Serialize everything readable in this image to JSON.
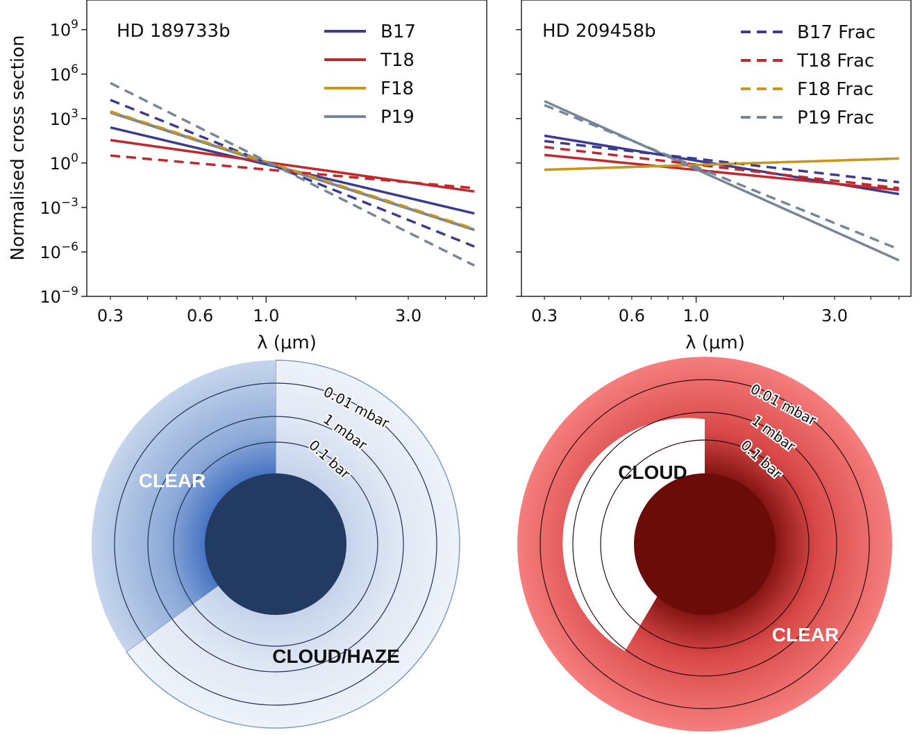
{
  "chart_data": [
    {
      "type": "line",
      "title": "HD 189733b",
      "xlabel": "λ (μm)",
      "ylabel": "Normalised cross section",
      "x_scale": "log",
      "y_scale": "log",
      "xlim": [
        0.25,
        5.5
      ],
      "ylim": [
        1e-09,
        100000000000.0
      ],
      "x_ticks": [
        {
          "v": 0.3,
          "label": "0.3"
        },
        {
          "v": 0.6,
          "label": "0.6"
        },
        {
          "v": 1.0,
          "label": "1.0"
        },
        {
          "v": 3.0,
          "label": "3.0"
        }
      ],
      "y_ticks": [
        {
          "exp": 9
        },
        {
          "exp": 6
        },
        {
          "exp": 3
        },
        {
          "exp": 0
        },
        {
          "exp": -3
        },
        {
          "exp": -6
        },
        {
          "exp": -9
        }
      ],
      "y_tick_base": "10",
      "legend_position": "top-right",
      "series": [
        {
          "name": "B17",
          "color": "#3b3b8f",
          "dash": false,
          "x": [
            0.3,
            5.0
          ],
          "y": [
            250,
            0.00039
          ]
        },
        {
          "name": "T18",
          "color": "#c0282d",
          "dash": false,
          "x": [
            0.3,
            5.0
          ],
          "y": [
            35,
            0.012
          ]
        },
        {
          "name": "F18",
          "color": "#c8961e",
          "dash": false,
          "x": [
            0.3,
            5.0
          ],
          "y": [
            2800,
            3.2e-05
          ]
        },
        {
          "name": "P19",
          "color": "#75869a",
          "dash": false,
          "x": [
            0.3,
            5.0
          ],
          "y": [
            2500,
            3e-05
          ]
        },
        {
          "name": "",
          "color": "#3b3b8f",
          "dash": true,
          "x": [
            0.3,
            5.0
          ],
          "y": [
            18000,
            2.3e-06
          ]
        },
        {
          "name": "",
          "color": "#c0282d",
          "dash": true,
          "x": [
            0.3,
            5.0
          ],
          "y": [
            3.2,
            0.02
          ]
        },
        {
          "name": "",
          "color": "#c8961e",
          "dash": true,
          "x": [
            0.3,
            5.0
          ],
          "y": [
            3000,
            3.6e-05
          ]
        },
        {
          "name": "",
          "color": "#75869a",
          "dash": true,
          "x": [
            0.3,
            5.0
          ],
          "y": [
            250000,
            1.2e-07
          ]
        }
      ]
    },
    {
      "type": "line",
      "title": "HD 209458b",
      "xlabel": "λ (μm)",
      "ylabel": "",
      "x_scale": "log",
      "y_scale": "log",
      "xlim": [
        0.25,
        5.5
      ],
      "ylim": [
        1e-09,
        100000000000.0
      ],
      "x_ticks": [
        {
          "v": 0.3,
          "label": "0.3"
        },
        {
          "v": 0.6,
          "label": "0.6"
        },
        {
          "v": 1.0,
          "label": "1.0"
        },
        {
          "v": 3.0,
          "label": "3.0"
        }
      ],
      "legend_position": "top-right",
      "series": [
        {
          "name": "",
          "color": "#3b3b8f",
          "dash": false,
          "x": [
            0.3,
            5.0
          ],
          "y": [
            70,
            0.008
          ]
        },
        {
          "name": "",
          "color": "#c0282d",
          "dash": false,
          "x": [
            0.3,
            5.0
          ],
          "y": [
            3.5,
            0.015
          ]
        },
        {
          "name": "",
          "color": "#c8961e",
          "dash": false,
          "x": [
            0.3,
            5.0
          ],
          "y": [
            0.35,
            2.0
          ]
        },
        {
          "name": "",
          "color": "#75869a",
          "dash": false,
          "x": [
            0.3,
            5.0
          ],
          "y": [
            15000,
            2.7e-07
          ]
        },
        {
          "name": "B17 Frac",
          "color": "#3b3b8f",
          "dash": true,
          "x": [
            0.3,
            5.0
          ],
          "y": [
            30,
            0.05
          ]
        },
        {
          "name": "T18 Frac",
          "color": "#c0282d",
          "dash": true,
          "x": [
            0.3,
            5.0
          ],
          "y": [
            12,
            0.02
          ]
        },
        {
          "name": "F18 Frac",
          "color": "#c8961e",
          "dash": true,
          "x": [
            0.3,
            5.0
          ],
          "y": [
            0.35,
            2.0
          ]
        },
        {
          "name": "P19 Frac",
          "color": "#75869a",
          "dash": true,
          "x": [
            0.3,
            5.0
          ],
          "y": [
            8000,
            1.5e-06
          ]
        }
      ]
    }
  ],
  "diagrams": {
    "left": {
      "ring_labels": [
        "0.01 mbar",
        "1 mbar",
        "0.1 bar"
      ],
      "region_labels": {
        "clear": "CLEAR",
        "cloud": "CLOUD/HAZE"
      },
      "colors": {
        "core": "#233a63",
        "clear_fill": "#5b84c4",
        "cloud_fill": "#e6edf7",
        "ring": "#1e2f55"
      }
    },
    "right": {
      "ring_labels": [
        "0.01 mbar",
        "1 mbar",
        "0.1 bar"
      ],
      "region_labels": {
        "cloud": "CLOUD",
        "clear": "CLEAR"
      },
      "colors": {
        "core": "#6b0c08",
        "clear_fill": "#f26d6d",
        "ring": "#2a0a08"
      }
    }
  }
}
